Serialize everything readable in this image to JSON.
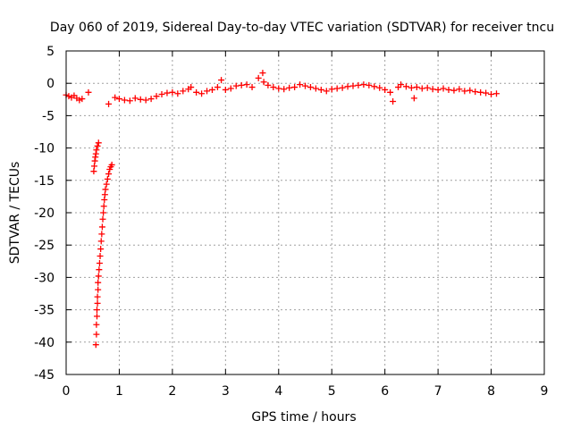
{
  "chart_data": {
    "type": "scatter",
    "title": "Day 060 of 2019, Sidereal Day-to-day VTEC variation (SDTVAR) for receiver tncu",
    "xlabel": "GPS time / hours",
    "ylabel": "SDTVAR / TECUs",
    "xlim": [
      0,
      9
    ],
    "ylim": [
      -45,
      5
    ],
    "xticks": [
      0,
      1,
      2,
      3,
      4,
      5,
      6,
      7,
      8,
      9
    ],
    "yticks": [
      5,
      0,
      -5,
      -10,
      -15,
      -20,
      -25,
      -30,
      -35,
      -40,
      -45
    ],
    "grid": true,
    "marker": "+",
    "color": "#ff0000",
    "series": [
      {
        "name": "tncu",
        "points": [
          [
            0.0,
            -1.8
          ],
          [
            0.05,
            -2.0
          ],
          [
            0.1,
            -2.2
          ],
          [
            0.15,
            -1.9
          ],
          [
            0.2,
            -2.3
          ],
          [
            0.25,
            -2.6
          ],
          [
            0.3,
            -2.4
          ],
          [
            0.42,
            -1.4
          ],
          [
            0.8,
            -3.2
          ],
          [
            0.92,
            -2.2
          ],
          [
            0.52,
            -13.6
          ],
          [
            0.53,
            -12.8
          ],
          [
            0.54,
            -12.0
          ],
          [
            0.55,
            -11.4
          ],
          [
            0.56,
            -10.9
          ],
          [
            0.57,
            -10.3
          ],
          [
            0.59,
            -9.7
          ],
          [
            0.61,
            -9.2
          ],
          [
            0.56,
            -40.4
          ],
          [
            0.57,
            -38.8
          ],
          [
            0.57,
            -37.3
          ],
          [
            0.58,
            -36.0
          ],
          [
            0.58,
            -35.0
          ],
          [
            0.59,
            -34.0
          ],
          [
            0.59,
            -33.0
          ],
          [
            0.6,
            -31.9
          ],
          [
            0.6,
            -30.8
          ],
          [
            0.61,
            -29.8
          ],
          [
            0.62,
            -28.8
          ],
          [
            0.63,
            -27.8
          ],
          [
            0.64,
            -26.7
          ],
          [
            0.65,
            -25.6
          ],
          [
            0.66,
            -24.4
          ],
          [
            0.67,
            -23.3
          ],
          [
            0.68,
            -22.2
          ],
          [
            0.69,
            -21.0
          ],
          [
            0.7,
            -20.0
          ],
          [
            0.71,
            -19.0
          ],
          [
            0.72,
            -18.0
          ],
          [
            0.73,
            -17.2
          ],
          [
            0.74,
            -16.4
          ],
          [
            0.76,
            -15.6
          ],
          [
            0.78,
            -14.8
          ],
          [
            0.8,
            -14.0
          ],
          [
            0.82,
            -13.3
          ],
          [
            0.84,
            -12.9
          ],
          [
            0.86,
            -12.6
          ],
          [
            1.0,
            -2.4
          ],
          [
            1.1,
            -2.6
          ],
          [
            1.2,
            -2.7
          ],
          [
            1.3,
            -2.3
          ],
          [
            1.4,
            -2.5
          ],
          [
            1.5,
            -2.6
          ],
          [
            1.6,
            -2.4
          ],
          [
            1.7,
            -2.0
          ],
          [
            1.8,
            -1.7
          ],
          [
            1.9,
            -1.5
          ],
          [
            2.0,
            -1.4
          ],
          [
            2.1,
            -1.6
          ],
          [
            2.2,
            -1.2
          ],
          [
            2.3,
            -0.9
          ],
          [
            2.35,
            -0.6
          ],
          [
            2.45,
            -1.4
          ],
          [
            2.55,
            -1.6
          ],
          [
            2.65,
            -1.2
          ],
          [
            2.75,
            -1.0
          ],
          [
            2.85,
            -0.6
          ],
          [
            2.92,
            0.5
          ],
          [
            3.0,
            -1.0
          ],
          [
            3.1,
            -0.8
          ],
          [
            3.2,
            -0.4
          ],
          [
            3.3,
            -0.3
          ],
          [
            3.4,
            -0.2
          ],
          [
            3.5,
            -0.6
          ],
          [
            3.62,
            0.8
          ],
          [
            3.7,
            1.6
          ],
          [
            3.72,
            0.2
          ],
          [
            3.8,
            -0.3
          ],
          [
            3.9,
            -0.6
          ],
          [
            4.0,
            -0.8
          ],
          [
            4.1,
            -0.9
          ],
          [
            4.2,
            -0.7
          ],
          [
            4.3,
            -0.6
          ],
          [
            4.4,
            -0.2
          ],
          [
            4.5,
            -0.4
          ],
          [
            4.6,
            -0.6
          ],
          [
            4.7,
            -0.8
          ],
          [
            4.8,
            -1.0
          ],
          [
            4.9,
            -1.2
          ],
          [
            5.0,
            -0.9
          ],
          [
            5.1,
            -0.8
          ],
          [
            5.2,
            -0.7
          ],
          [
            5.3,
            -0.5
          ],
          [
            5.4,
            -0.4
          ],
          [
            5.5,
            -0.3
          ],
          [
            5.6,
            -0.2
          ],
          [
            5.7,
            -0.3
          ],
          [
            5.8,
            -0.5
          ],
          [
            5.9,
            -0.7
          ],
          [
            6.0,
            -1.0
          ],
          [
            6.1,
            -1.4
          ],
          [
            6.15,
            -2.8
          ],
          [
            6.25,
            -0.6
          ],
          [
            6.3,
            -0.2
          ],
          [
            6.4,
            -0.5
          ],
          [
            6.5,
            -0.7
          ],
          [
            6.55,
            -2.3
          ],
          [
            6.6,
            -0.6
          ],
          [
            6.7,
            -0.8
          ],
          [
            6.8,
            -0.7
          ],
          [
            6.9,
            -0.9
          ],
          [
            7.0,
            -1.0
          ],
          [
            7.1,
            -0.8
          ],
          [
            7.2,
            -1.0
          ],
          [
            7.3,
            -1.1
          ],
          [
            7.4,
            -0.9
          ],
          [
            7.5,
            -1.2
          ],
          [
            7.6,
            -1.1
          ],
          [
            7.7,
            -1.3
          ],
          [
            7.8,
            -1.4
          ],
          [
            7.9,
            -1.5
          ],
          [
            8.0,
            -1.7
          ],
          [
            8.1,
            -1.6
          ]
        ]
      }
    ]
  }
}
